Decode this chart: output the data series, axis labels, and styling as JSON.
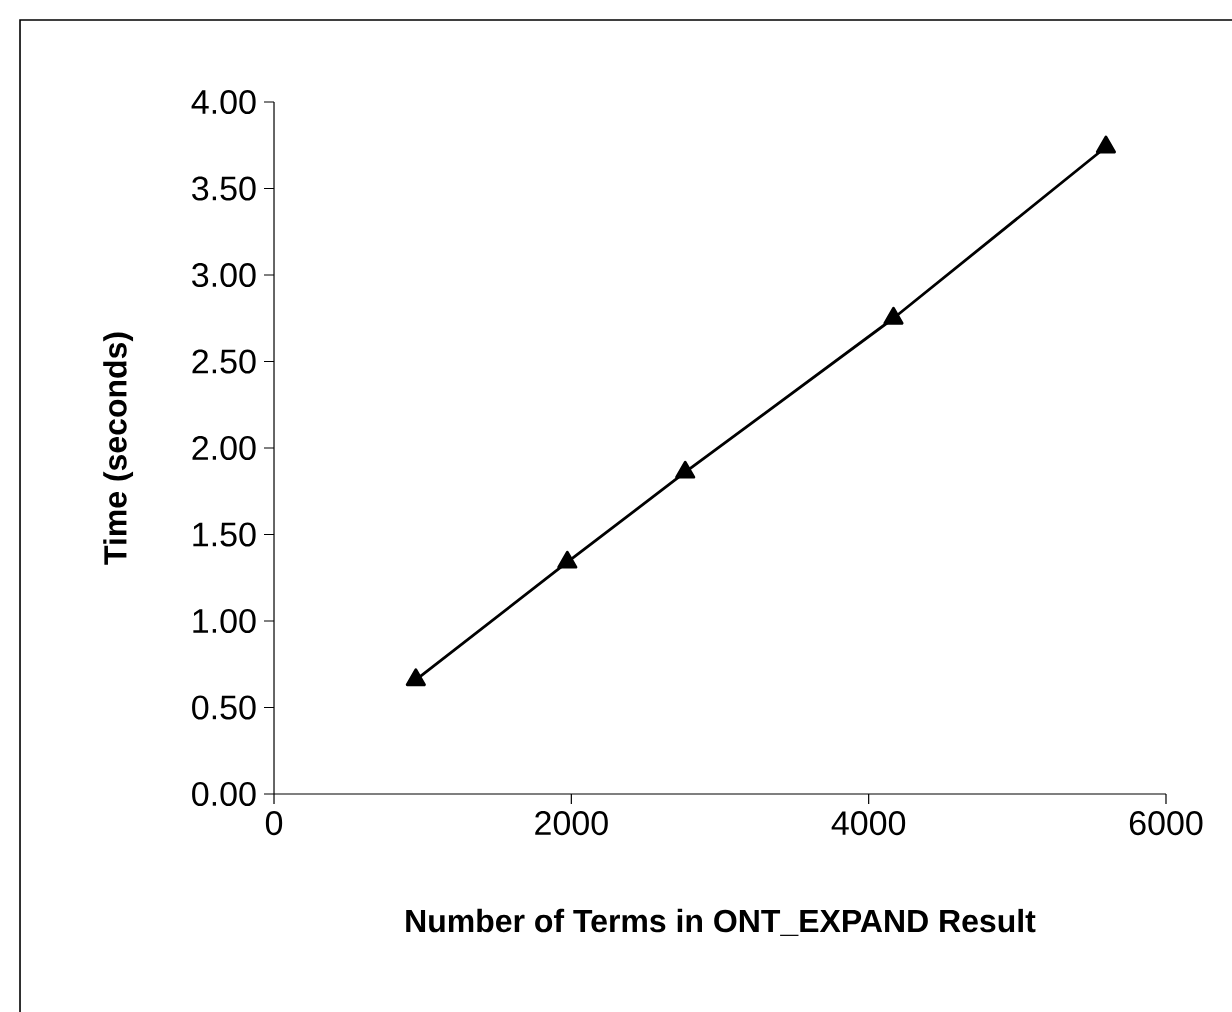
{
  "chart_data": {
    "type": "line",
    "xlabel": "Number of Terms in ONT_EXPAND Result",
    "ylabel": "Time (seconds)",
    "x": [
      954,
      1973,
      2766,
      4167,
      5596
    ],
    "series": [
      {
        "color": "#000000",
        "values": [
          0.66,
          1.34,
          1.86,
          2.75,
          3.74
        ]
      }
    ],
    "xlim": [
      0,
      6000
    ],
    "xticks": [
      0,
      2000,
      4000,
      6000
    ],
    "ylim": [
      0,
      4
    ],
    "yticks": [
      {
        "value": 0,
        "label": "0.00"
      },
      {
        "value": 0.5,
        "label": "0.50"
      },
      {
        "value": 1,
        "label": "1.00"
      },
      {
        "value": 1.5,
        "label": "1.50"
      },
      {
        "value": 2,
        "label": "2.00"
      },
      {
        "value": 2.5,
        "label": "2.50"
      },
      {
        "value": 3,
        "label": "3.00"
      },
      {
        "value": 3.5,
        "label": "3.50"
      },
      {
        "value": 4,
        "label": "4.00"
      }
    ],
    "grid": false,
    "marker": "triangle",
    "line_style": "solid"
  }
}
